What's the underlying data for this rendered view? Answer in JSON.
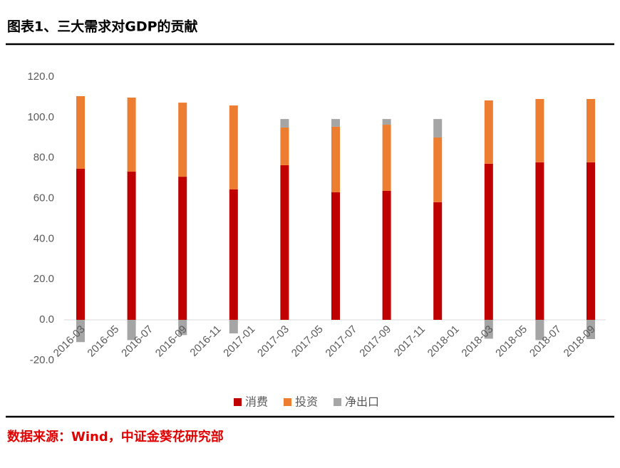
{
  "chart_data": {
    "type": "bar",
    "stacked": true,
    "title": "图表1、三大需求对GDP的贡献",
    "source": "数据来源：Wind，中证金葵花研究部",
    "x": [
      "2016-03",
      "2016-06",
      "2016-09",
      "2016-12",
      "2017-03",
      "2017-06",
      "2017-09",
      "2017-12",
      "2018-03",
      "2018-06",
      "2018-09"
    ],
    "xticks": [
      "2016-03",
      "2016-05",
      "2016-07",
      "2016-09",
      "2016-11",
      "2017-01",
      "2017-03",
      "2017-05",
      "2017-07",
      "2017-09",
      "2017-11",
      "2018-01",
      "2018-03",
      "2018-05",
      "2018-07",
      "2018-09"
    ],
    "series": [
      {
        "name": "消费",
        "color": "#c00000",
        "values": [
          74.6,
          73.2,
          70.7,
          64.4,
          76.4,
          63.0,
          63.7,
          58.1,
          77.1,
          77.8,
          77.8
        ]
      },
      {
        "name": "投资",
        "color": "#ed7d31",
        "values": [
          35.9,
          36.6,
          36.6,
          41.5,
          18.6,
          32.4,
          32.7,
          32.0,
          31.3,
          31.3,
          31.3
        ]
      },
      {
        "name": "净出口",
        "color": "#a5a5a5",
        "values": [
          -11.0,
          -10.0,
          -7.5,
          -6.7,
          4.2,
          3.8,
          2.8,
          9.1,
          -9.3,
          -10.0,
          -9.5
        ]
      }
    ],
    "ylim": [
      -20,
      120
    ],
    "yticks": [
      {
        "value": -20,
        "label": "-20.0"
      },
      {
        "value": 0,
        "label": "0.0"
      },
      {
        "value": 20,
        "label": "20.0"
      },
      {
        "value": 40,
        "label": "40.0"
      },
      {
        "value": 60,
        "label": "60.0"
      },
      {
        "value": 80,
        "label": "80.0"
      },
      {
        "value": 100,
        "label": "100.0"
      },
      {
        "value": 120,
        "label": "120.0"
      }
    ],
    "grid": false,
    "legend": "bottom"
  }
}
